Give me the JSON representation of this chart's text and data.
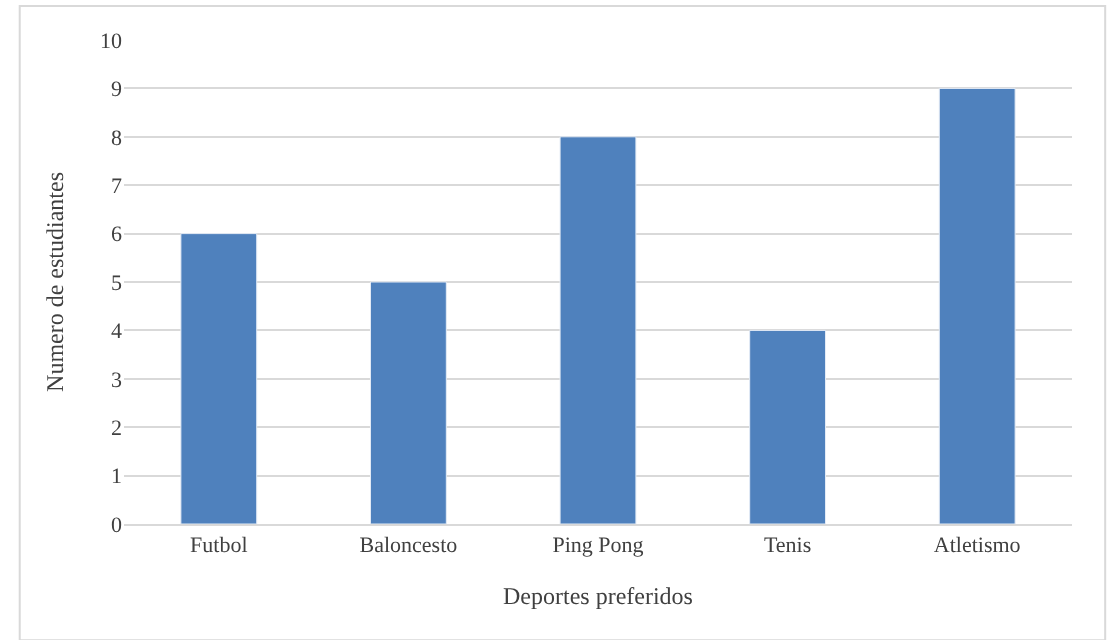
{
  "chart_data": {
    "type": "bar",
    "xlabel": "Deportes preferidos",
    "ylabel": "Numero de estudiantes",
    "categories": [
      "Futbol",
      "Baloncesto",
      "Ping Pong",
      "Tenis",
      "Atletismo"
    ],
    "values": [
      6,
      5,
      8,
      4,
      9
    ],
    "color": "#4f81bd",
    "ylim": [
      0,
      10
    ],
    "yticks": [
      0,
      1,
      2,
      3,
      4,
      5,
      6,
      7,
      8,
      9,
      10
    ],
    "grid": "y"
  }
}
